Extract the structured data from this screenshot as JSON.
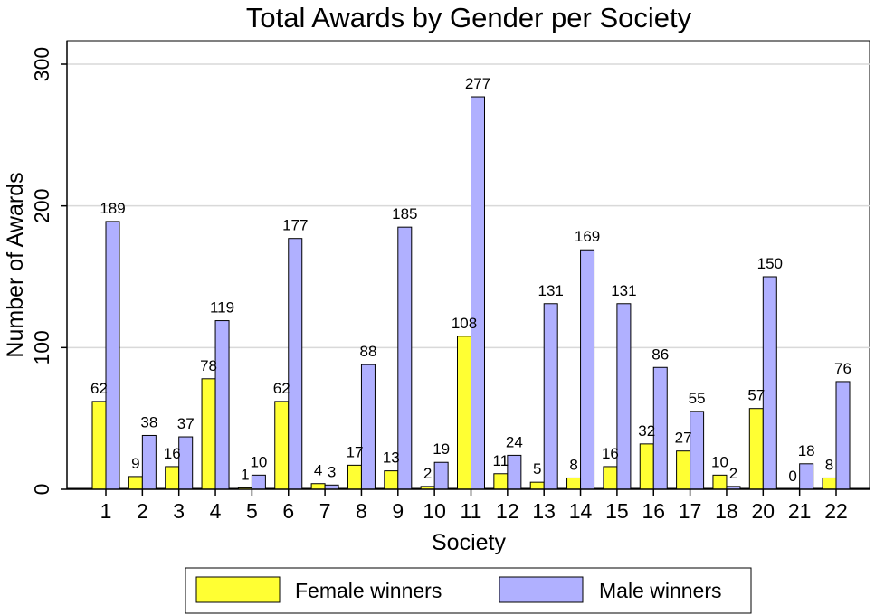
{
  "chart_data": {
    "type": "bar",
    "title": "Total Awards by Gender per Society",
    "xlabel": "Society",
    "ylabel": "Number of Awards",
    "ylim": [
      0,
      300
    ],
    "yticks": [
      0,
      100,
      200,
      300
    ],
    "grid": true,
    "legend_position": "bottom",
    "categories": [
      "1",
      "2",
      "3",
      "4",
      "5",
      "6",
      "7",
      "8",
      "9",
      "10",
      "11",
      "12",
      "13",
      "14",
      "15",
      "16",
      "17",
      "18",
      "20",
      "21",
      "22"
    ],
    "series": [
      {
        "name": "Female winners",
        "color": "#ffff33",
        "values": [
          62,
          9,
          16,
          78,
          1,
          62,
          4,
          17,
          13,
          2,
          108,
          11,
          5,
          8,
          16,
          32,
          27,
          10,
          57,
          0,
          8
        ]
      },
      {
        "name": "Male winners",
        "color": "#b0b0ff",
        "values": [
          189,
          38,
          37,
          119,
          10,
          177,
          3,
          88,
          185,
          19,
          277,
          24,
          131,
          169,
          131,
          86,
          55,
          2,
          150,
          18,
          76
        ]
      }
    ]
  }
}
